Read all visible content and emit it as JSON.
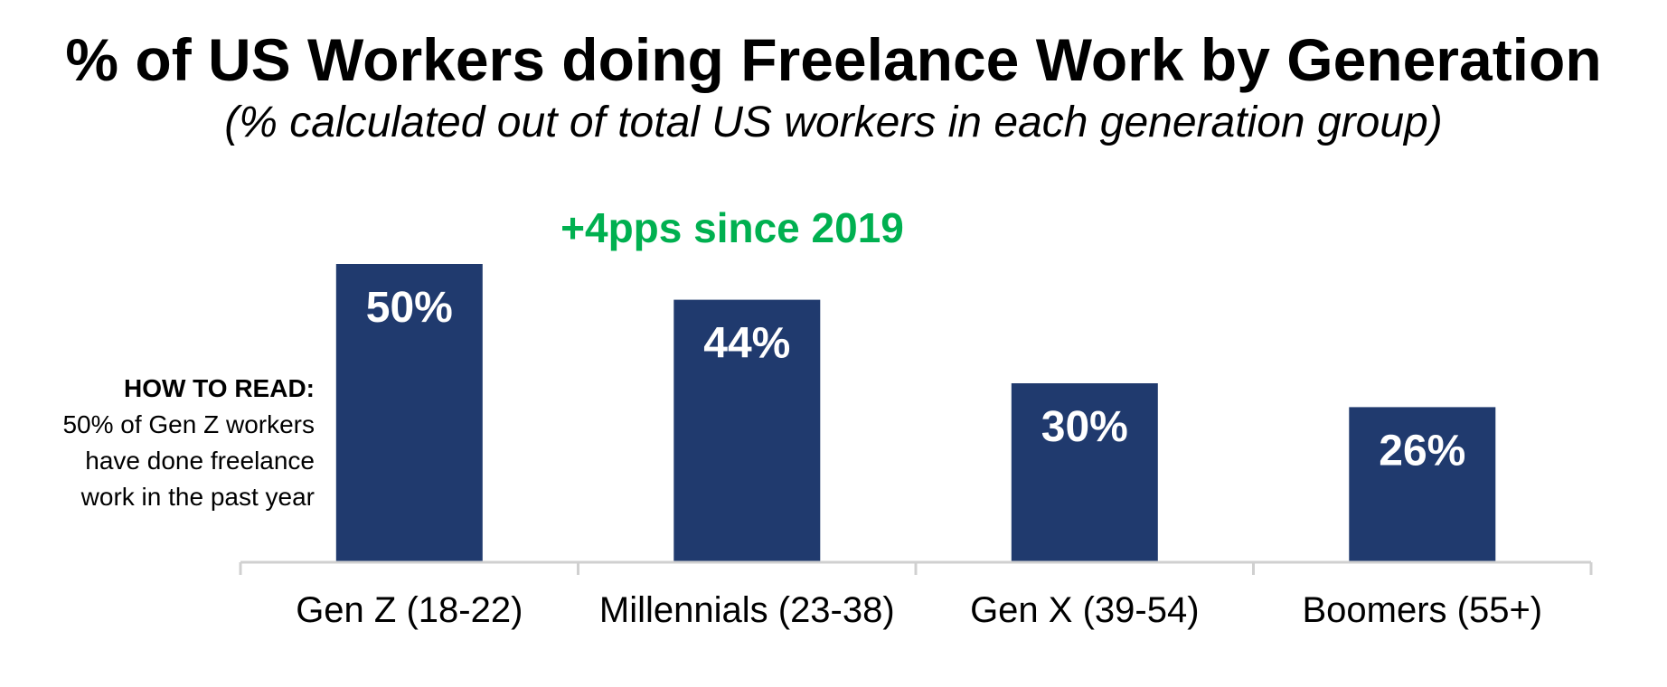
{
  "chart_data": {
    "type": "bar",
    "title": "% of US Workers doing Freelance Work by Generation",
    "subtitle": "(% calculated out of total US workers in each generation group)",
    "categories": [
      "Gen Z (18-22)",
      "Millennials (23-38)",
      "Gen X (39-54)",
      "Boomers (55+)"
    ],
    "values": [
      50,
      44,
      30,
      26
    ],
    "data_labels": [
      "50%",
      "44%",
      "30%",
      "26%"
    ],
    "xlabel": "",
    "ylabel": "",
    "ylim": [
      0,
      50
    ],
    "grid": false,
    "bar_color": "#203A6E",
    "annotations": [
      {
        "text": "+4pps since 2019",
        "color": "#00B050"
      }
    ]
  },
  "how_to_read": {
    "heading": "HOW TO READ:",
    "lines": [
      "50% of Gen Z workers",
      "have done freelance",
      "work in the past year"
    ]
  },
  "colors": {
    "axis": "#D0D0D0",
    "text": "#000000",
    "label_on_bar": "#FFFFFF"
  }
}
